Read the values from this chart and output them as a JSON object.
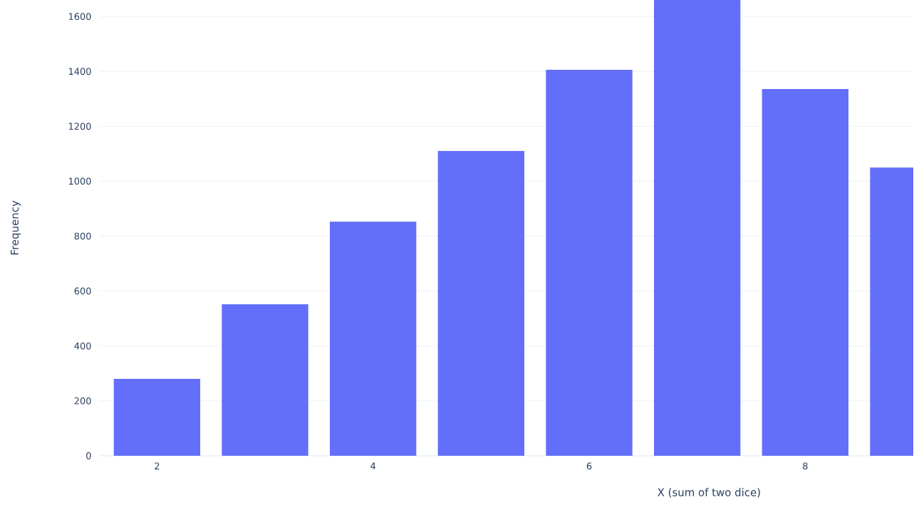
{
  "chart_data": {
    "type": "bar",
    "xlabel": "X (sum of two dice)",
    "ylabel": "Frequency",
    "x": [
      2,
      3,
      4,
      5,
      6,
      7,
      8,
      9
    ],
    "values": [
      280,
      552,
      853,
      1110,
      1406,
      1660,
      1336,
      1050
    ],
    "color": "#636efa",
    "xlim": [
      1.47,
      9.0
    ],
    "ylim": [
      0,
      1660
    ],
    "xticks": [
      2,
      4,
      6,
      8
    ],
    "yticks": [
      0,
      200,
      400,
      600,
      800,
      1000,
      1200,
      1400,
      1600
    ],
    "grid": "y"
  }
}
